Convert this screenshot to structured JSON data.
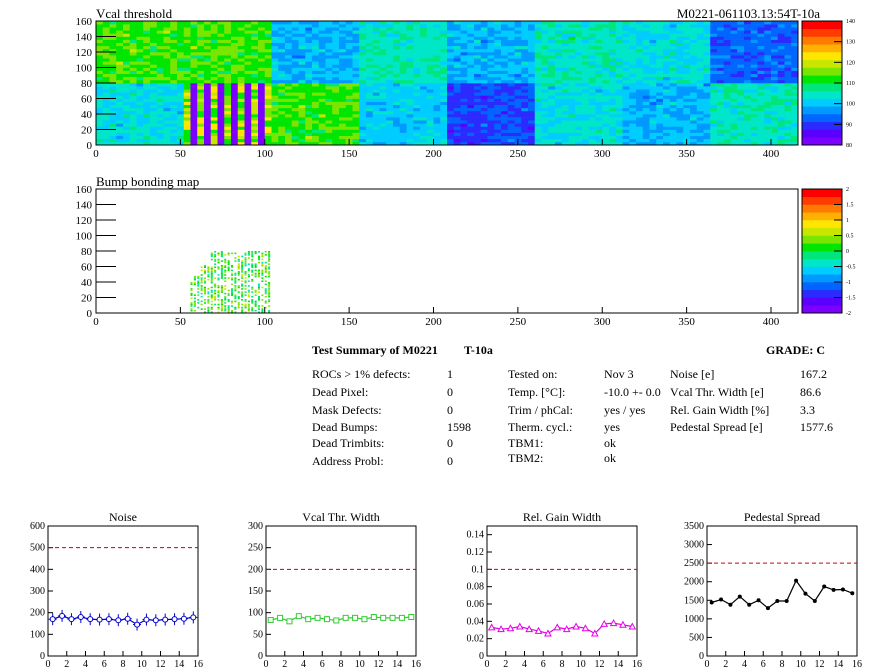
{
  "header": {
    "threshold_title": "Vcal threshold",
    "module_id": "M0221-061103.13:54T-10a",
    "bump_title": "Bump bonding map"
  },
  "colors": {
    "palette": [
      "#7c00ff",
      "#5a00ff",
      "#2b2bff",
      "#0066ff",
      "#0099ff",
      "#00ccff",
      "#00e6c8",
      "#00e67a",
      "#00e600",
      "#7ae600",
      "#c8e600",
      "#ffe600",
      "#ffb000",
      "#ff7a00",
      "#ff3c00",
      "#ff0000"
    ],
    "limit_line": "#cc0000",
    "noise_series": "#0000cc",
    "vcal_series": "#33cc33",
    "gain_series": "#e600e6",
    "pedestal_series": "#000000"
  },
  "chart_data": [
    {
      "type": "heatmap",
      "title": "Vcal threshold",
      "xlim": [
        0,
        416
      ],
      "ylim": [
        0,
        160
      ],
      "x_ticks": [
        "0",
        "50",
        "100",
        "150",
        "200",
        "250",
        "300",
        "350",
        "400"
      ],
      "y_ticks": [
        "0",
        "20",
        "40",
        "60",
        "80",
        "100",
        "120",
        "140",
        "160"
      ],
      "colorbar": {
        "min": 80,
        "max": 140,
        "ticks": [
          "80",
          "90",
          "100",
          "110",
          "120",
          "130",
          "140"
        ]
      },
      "roc_mean_levels": {
        "top_row": [
          113,
          113,
          99,
          105,
          99,
          105,
          103,
          93
        ],
        "bottom_row": [
          103,
          102,
          113,
          101,
          91,
          103,
          99,
          105
        ]
      },
      "defect_region": {
        "x": [
          52,
          104
        ],
        "y": [
          0,
          80
        ]
      }
    },
    {
      "type": "heatmap",
      "title": "Bump bonding map",
      "xlim": [
        0,
        416
      ],
      "ylim": [
        0,
        160
      ],
      "x_ticks": [
        "0",
        "50",
        "100",
        "150",
        "200",
        "250",
        "300",
        "350",
        "400"
      ],
      "y_ticks": [
        "0",
        "20",
        "40",
        "60",
        "80",
        "100",
        "120",
        "140",
        "160"
      ],
      "colorbar": {
        "min": -2,
        "max": 2,
        "ticks": [
          "-2",
          "-1.5",
          "-1",
          "-0.5",
          "0",
          "0.5",
          "1",
          "1.5",
          "2"
        ]
      },
      "defect_region": {
        "x": [
          56,
          104
        ],
        "y": [
          0,
          80
        ]
      }
    },
    {
      "type": "line",
      "title": "Noise",
      "x": [
        0,
        1,
        2,
        3,
        4,
        5,
        6,
        7,
        8,
        9,
        10,
        11,
        12,
        13,
        14,
        15
      ],
      "values": [
        170,
        185,
        170,
        180,
        170,
        168,
        170,
        165,
        172,
        145,
        168,
        165,
        168,
        170,
        172,
        178
      ],
      "xlim": [
        0,
        16
      ],
      "ylim": [
        0,
        600
      ],
      "limit": 500,
      "x_ticks": [
        "0",
        "2",
        "4",
        "6",
        "8",
        "10",
        "12",
        "14",
        "16"
      ],
      "y_ticks": [
        "0",
        "100",
        "200",
        "300",
        "400",
        "500",
        "600"
      ],
      "marker": "circle"
    },
    {
      "type": "line",
      "title": "Vcal Thr. Width",
      "x": [
        0,
        1,
        2,
        3,
        4,
        5,
        6,
        7,
        8,
        9,
        10,
        11,
        12,
        13,
        14,
        15
      ],
      "values": [
        83,
        88,
        80,
        92,
        85,
        88,
        85,
        82,
        88,
        88,
        85,
        90,
        88,
        88,
        88,
        90
      ],
      "xlim": [
        0,
        16
      ],
      "ylim": [
        0,
        300
      ],
      "limit": 200,
      "x_ticks": [
        "0",
        "2",
        "4",
        "6",
        "8",
        "10",
        "12",
        "14",
        "16"
      ],
      "y_ticks": [
        "0",
        "50",
        "100",
        "150",
        "200",
        "250",
        "300"
      ],
      "marker": "square"
    },
    {
      "type": "line",
      "title": "Rel. Gain Width",
      "x": [
        0,
        1,
        2,
        3,
        4,
        5,
        6,
        7,
        8,
        9,
        10,
        11,
        12,
        13,
        14,
        15
      ],
      "values": [
        0.033,
        0.031,
        0.032,
        0.034,
        0.031,
        0.029,
        0.026,
        0.033,
        0.031,
        0.034,
        0.032,
        0.026,
        0.037,
        0.038,
        0.036,
        0.034
      ],
      "xlim": [
        0,
        16
      ],
      "ylim": [
        0,
        0.15
      ],
      "limit": 0.1,
      "x_ticks": [
        "0",
        "2",
        "4",
        "6",
        "8",
        "10",
        "12",
        "14",
        "16"
      ],
      "y_ticks": [
        "0",
        "0.02",
        "0.04",
        "0.06",
        "0.08",
        "0.1",
        "0.12",
        "0.14"
      ],
      "marker": "triangle"
    },
    {
      "type": "line",
      "title": "Pedestal Spread",
      "x": [
        0,
        1,
        2,
        3,
        4,
        5,
        6,
        7,
        8,
        9,
        10,
        11,
        12,
        13,
        14,
        15
      ],
      "values": [
        1440,
        1520,
        1380,
        1600,
        1380,
        1500,
        1290,
        1480,
        1480,
        2030,
        1680,
        1480,
        1870,
        1780,
        1790,
        1690
      ],
      "xlim": [
        0,
        16
      ],
      "ylim": [
        0,
        3500
      ],
      "limit": 2500,
      "x_ticks": [
        "0",
        "2",
        "4",
        "6",
        "8",
        "10",
        "12",
        "14",
        "16"
      ],
      "y_ticks": [
        "0",
        "500",
        "1000",
        "1500",
        "2000",
        "2500",
        "3000",
        "3500"
      ],
      "marker": "dot"
    }
  ],
  "summary": {
    "title": "Test Summary of M0221",
    "tag": "T-10a",
    "grade": "GRADE:  C",
    "left": [
      {
        "label": "ROCs > 1% defects:",
        "value": "1"
      },
      {
        "label": "Dead Pixel:",
        "value": "0"
      },
      {
        "label": "Mask Defects:",
        "value": "0"
      },
      {
        "label": "Dead Bumps:",
        "value": "1598"
      },
      {
        "label": "Dead Trimbits:",
        "value": "0"
      },
      {
        "label": "Address Probl:",
        "value": "0"
      }
    ],
    "middle": [
      {
        "label": "Tested on:",
        "value": "Nov 3"
      },
      {
        "label": "Temp. [°C]:",
        "value": "-10.0 +- 0.0"
      },
      {
        "label": "Trim / phCal:",
        "value": "yes / yes"
      },
      {
        "label": "Therm. cycl.:",
        "value": "yes"
      },
      {
        "label": "TBM1:",
        "value": "ok"
      },
      {
        "label": "TBM2:",
        "value": "ok"
      }
    ],
    "right": [
      {
        "label": "Noise [e]",
        "value": "167.2"
      },
      {
        "label": "Vcal Thr. Width [e]",
        "value": "86.6"
      },
      {
        "label": "Rel. Gain Width [%]",
        "value": "3.3"
      },
      {
        "label": "Pedestal Spread [e]",
        "value": "1577.6"
      }
    ]
  }
}
